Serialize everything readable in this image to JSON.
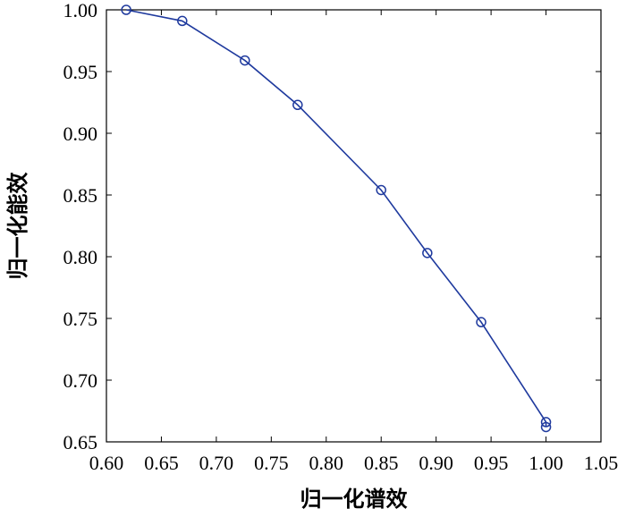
{
  "chart_data": {
    "type": "line",
    "title": "",
    "xlabel": "归一化谱效",
    "ylabel": "归一化能效",
    "xlim": [
      0.6,
      1.05
    ],
    "ylim": [
      0.65,
      1.0
    ],
    "x_ticks": [
      0.6,
      0.65,
      0.7,
      0.75,
      0.8,
      0.85,
      0.9,
      0.95,
      1.0,
      1.05
    ],
    "x_tick_labels": [
      "0.60",
      "0.65",
      "0.70",
      "0.75",
      "0.80",
      "0.85",
      "0.90",
      "0.95",
      "1.00",
      "1.05"
    ],
    "y_ticks": [
      0.65,
      0.7,
      0.75,
      0.8,
      0.85,
      0.9,
      0.95,
      1.0
    ],
    "y_tick_labels": [
      "0.65",
      "0.70",
      "0.75",
      "0.80",
      "0.85",
      "0.90",
      "0.95",
      "1.00"
    ],
    "grid": false,
    "legend": "none",
    "series": [
      {
        "color": "#1f3a9e",
        "marker": "circle-open",
        "x": [
          0.618,
          0.669,
          0.726,
          0.774,
          0.85,
          0.892,
          0.941,
          1.0,
          1.0
        ],
        "y": [
          1.0,
          0.991,
          0.959,
          0.923,
          0.854,
          0.803,
          0.747,
          0.666,
          0.662
        ]
      }
    ]
  }
}
